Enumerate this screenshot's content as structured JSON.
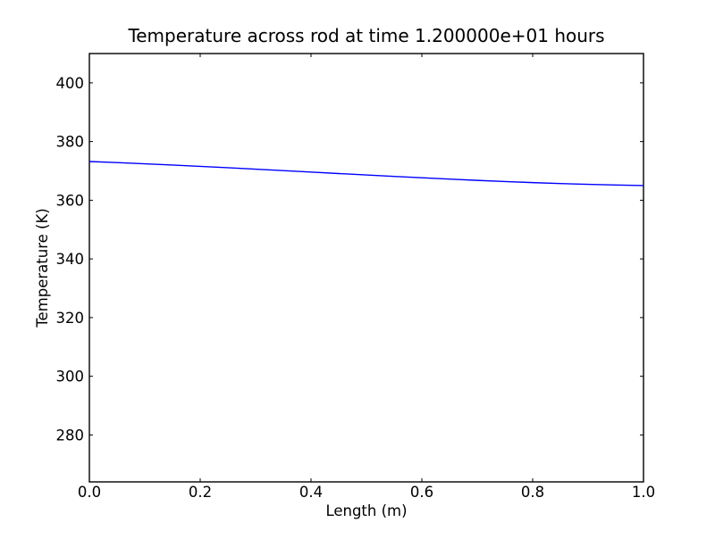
{
  "figure": {
    "background": "#ffffff",
    "axis_color": "#000000",
    "text_color": "#000000"
  },
  "chart_data": {
    "type": "line",
    "title": "Temperature across rod at time 1.200000e+01 hours",
    "xlabel": "Length (m)",
    "ylabel": "Temperature (K)",
    "xlim": [
      0.0,
      1.0
    ],
    "ylim": [
      264,
      410
    ],
    "xticks": [
      0.0,
      0.2,
      0.4,
      0.6,
      0.8,
      1.0
    ],
    "xtick_labels": [
      "0.0",
      "0.2",
      "0.4",
      "0.6",
      "0.8",
      "1.0"
    ],
    "yticks": [
      280,
      300,
      320,
      340,
      360,
      380,
      400
    ],
    "ytick_labels": [
      "280",
      "300",
      "320",
      "340",
      "360",
      "380",
      "400"
    ],
    "grid": false,
    "legend": false,
    "tick_direction": "in",
    "series": [
      {
        "name": "temperature-profile",
        "color": "#0000ff",
        "line_width": 1.4,
        "x": [
          0.0,
          0.05,
          0.1,
          0.15,
          0.2,
          0.25,
          0.3,
          0.35,
          0.4,
          0.45,
          0.5,
          0.55,
          0.6,
          0.65,
          0.7,
          0.75,
          0.8,
          0.85,
          0.9,
          0.95,
          1.0
        ],
        "y": [
          373.2,
          372.83,
          372.43,
          372.0,
          371.55,
          371.08,
          370.59,
          370.09,
          369.59,
          369.09,
          368.6,
          368.12,
          367.65,
          367.2,
          366.77,
          366.38,
          366.01,
          365.69,
          365.41,
          365.18,
          365.0
        ]
      }
    ]
  }
}
